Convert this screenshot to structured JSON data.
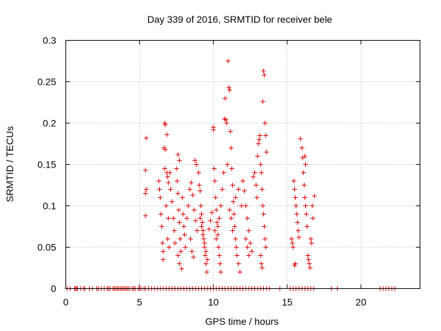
{
  "chart_data": {
    "type": "scatter",
    "title": "Day 339 of 2016, SRMTID for receiver bele",
    "xlabel": "GPS time / hours",
    "ylabel": "SRMTID / TECUs",
    "xlim": [
      0,
      24
    ],
    "ylim": [
      0,
      0.3
    ],
    "xticks": [
      0,
      5,
      10,
      15,
      20
    ],
    "yticks": [
      0,
      0.05,
      0.1,
      0.15,
      0.2,
      0.25,
      0.3
    ],
    "xtick_labels": [
      "0",
      "5",
      "10",
      "15",
      "20"
    ],
    "ytick_labels": [
      "0",
      "0.05",
      "0.1",
      "0.15",
      "0.2",
      "0.25",
      "0.3"
    ],
    "grid": true,
    "marker": "+",
    "color": "#e00000",
    "series": [
      {
        "name": "SRMTID",
        "points": [
          [
            5.45,
            0.182
          ],
          [
            5.4,
            0.143
          ],
          [
            5.45,
            0.12
          ],
          [
            5.4,
            0.115
          ],
          [
            5.4,
            0.088
          ],
          [
            6.3,
            0.13
          ],
          [
            6.35,
            0.12
          ],
          [
            6.4,
            0.11
          ],
          [
            6.45,
            0.09
          ],
          [
            6.5,
            0.075
          ],
          [
            6.55,
            0.055
          ],
          [
            6.6,
            0.045
          ],
          [
            6.7,
            0.2
          ],
          [
            6.75,
            0.198
          ],
          [
            6.65,
            0.17
          ],
          [
            6.75,
            0.168
          ],
          [
            6.85,
            0.186
          ],
          [
            6.7,
            0.145
          ],
          [
            6.85,
            0.14
          ],
          [
            6.9,
            0.135
          ],
          [
            6.95,
            0.128
          ],
          [
            6.8,
            0.1
          ],
          [
            6.95,
            0.085
          ],
          [
            6.9,
            0.06
          ],
          [
            7.0,
            0.05
          ],
          [
            6.6,
            0.035
          ],
          [
            7.05,
            0.14
          ],
          [
            7.1,
            0.12
          ],
          [
            7.2,
            0.105
          ],
          [
            7.3,
            0.085
          ],
          [
            7.35,
            0.07
          ],
          [
            7.4,
            0.055
          ],
          [
            7.55,
            0.13
          ],
          [
            7.6,
            0.115
          ],
          [
            7.65,
            0.095
          ],
          [
            7.7,
            0.08
          ],
          [
            7.75,
            0.06
          ],
          [
            7.8,
            0.045
          ],
          [
            7.6,
            0.04
          ],
          [
            7.7,
            0.03
          ],
          [
            7.85,
            0.024
          ],
          [
            7.6,
            0.162
          ],
          [
            7.7,
            0.155
          ],
          [
            7.5,
            0.145
          ],
          [
            7.9,
            0.11
          ],
          [
            7.95,
            0.09
          ],
          [
            8.0,
            0.075
          ],
          [
            8.05,
            0.065
          ],
          [
            8.1,
            0.05
          ],
          [
            8.2,
            0.085
          ],
          [
            8.3,
            0.1
          ],
          [
            8.4,
            0.12
          ],
          [
            8.5,
            0.128
          ],
          [
            8.6,
            0.113
          ],
          [
            8.7,
            0.095
          ],
          [
            8.8,
            0.082
          ],
          [
            8.9,
            0.07
          ],
          [
            8.45,
            0.06
          ],
          [
            8.55,
            0.045
          ],
          [
            8.65,
            0.038
          ],
          [
            8.75,
            0.155
          ],
          [
            8.85,
            0.15
          ],
          [
            9.0,
            0.14
          ],
          [
            9.05,
            0.125
          ],
          [
            9.1,
            0.118
          ],
          [
            9.15,
            0.1
          ],
          [
            9.2,
            0.09
          ],
          [
            9.25,
            0.08
          ],
          [
            9.3,
            0.07
          ],
          [
            9.35,
            0.06
          ],
          [
            9.4,
            0.05
          ],
          [
            9.45,
            0.04
          ],
          [
            9.5,
            0.03
          ],
          [
            9.55,
            0.02
          ],
          [
            9.1,
            0.085
          ],
          [
            9.2,
            0.075
          ],
          [
            9.3,
            0.065
          ],
          [
            9.4,
            0.055
          ],
          [
            9.5,
            0.045
          ],
          [
            9.6,
            0.035
          ],
          [
            9.7,
            0.072
          ],
          [
            9.8,
            0.082
          ],
          [
            9.9,
            0.092
          ],
          [
            10.0,
            0.195
          ],
          [
            10.0,
            0.192
          ],
          [
            10.05,
            0.145
          ],
          [
            10.1,
            0.13
          ],
          [
            10.15,
            0.11
          ],
          [
            10.2,
            0.095
          ],
          [
            10.25,
            0.08
          ],
          [
            10.3,
            0.065
          ],
          [
            10.35,
            0.05
          ],
          [
            10.4,
            0.04
          ],
          [
            10.45,
            0.03
          ],
          [
            10.5,
            0.02
          ],
          [
            10.1,
            0.07
          ],
          [
            10.2,
            0.06
          ],
          [
            10.3,
            0.075
          ],
          [
            10.4,
            0.085
          ],
          [
            10.5,
            0.1
          ],
          [
            10.6,
            0.12
          ],
          [
            10.7,
            0.14
          ],
          [
            10.75,
            0.205
          ],
          [
            10.85,
            0.204
          ],
          [
            10.9,
            0.2
          ],
          [
            10.8,
            0.23
          ],
          [
            10.95,
            0.15
          ],
          [
            11.0,
            0.275
          ],
          [
            11.05,
            0.243
          ],
          [
            11.1,
            0.24
          ],
          [
            11.15,
            0.19
          ],
          [
            11.2,
            0.17
          ],
          [
            11.25,
            0.145
          ],
          [
            11.3,
            0.125
          ],
          [
            11.35,
            0.105
          ],
          [
            11.4,
            0.09
          ],
          [
            11.45,
            0.075
          ],
          [
            11.5,
            0.06
          ],
          [
            11.55,
            0.05
          ],
          [
            11.6,
            0.04
          ],
          [
            11.7,
            0.03
          ],
          [
            11.8,
            0.02
          ],
          [
            11.1,
            0.095
          ],
          [
            11.2,
            0.085
          ],
          [
            11.3,
            0.07
          ],
          [
            11.5,
            0.11
          ],
          [
            11.7,
            0.12
          ],
          [
            11.9,
            0.1
          ],
          [
            12.0,
            0.13
          ],
          [
            12.1,
            0.118
          ],
          [
            12.2,
            0.1
          ],
          [
            12.3,
            0.085
          ],
          [
            12.4,
            0.07
          ],
          [
            12.5,
            0.055
          ],
          [
            12.6,
            0.045
          ],
          [
            12.2,
            0.06
          ],
          [
            12.3,
            0.05
          ],
          [
            12.4,
            0.04
          ],
          [
            12.7,
            0.135
          ],
          [
            12.8,
            0.14
          ],
          [
            12.9,
            0.125
          ],
          [
            12.95,
            0.11
          ],
          [
            13.0,
            0.16
          ],
          [
            13.05,
            0.175
          ],
          [
            13.1,
            0.18
          ],
          [
            13.15,
            0.185
          ],
          [
            13.2,
            0.15
          ],
          [
            13.25,
            0.14
          ],
          [
            13.3,
            0.12
          ],
          [
            13.35,
            0.1
          ],
          [
            13.4,
            0.09
          ],
          [
            13.45,
            0.075
          ],
          [
            13.5,
            0.06
          ],
          [
            13.55,
            0.05
          ],
          [
            13.2,
            0.04
          ],
          [
            13.25,
            0.03
          ],
          [
            13.3,
            0.025
          ],
          [
            13.4,
            0.263
          ],
          [
            13.45,
            0.258
          ],
          [
            13.35,
            0.226
          ],
          [
            13.5,
            0.2
          ],
          [
            13.55,
            0.185
          ],
          [
            13.6,
            0.165
          ],
          [
            15.3,
            0.06
          ],
          [
            15.35,
            0.055
          ],
          [
            15.4,
            0.05
          ],
          [
            15.45,
            0.13
          ],
          [
            15.5,
            0.12
          ],
          [
            15.55,
            0.11
          ],
          [
            15.6,
            0.1
          ],
          [
            15.65,
            0.09
          ],
          [
            15.7,
            0.08
          ],
          [
            15.75,
            0.07
          ],
          [
            15.8,
            0.062
          ],
          [
            15.5,
            0.028
          ],
          [
            15.55,
            0.03
          ],
          [
            15.9,
            0.181
          ],
          [
            16.0,
            0.17
          ],
          [
            16.05,
            0.158
          ],
          [
            16.1,
            0.14
          ],
          [
            16.15,
            0.125
          ],
          [
            16.2,
            0.11
          ],
          [
            16.25,
            0.1
          ],
          [
            16.3,
            0.09
          ],
          [
            16.35,
            0.075
          ],
          [
            16.2,
            0.16
          ],
          [
            16.25,
            0.15
          ],
          [
            16.4,
            0.04
          ],
          [
            16.45,
            0.035
          ],
          [
            16.5,
            0.03
          ],
          [
            16.55,
            0.025
          ],
          [
            16.6,
            0.06
          ],
          [
            16.65,
            0.055
          ],
          [
            16.7,
            0.1
          ],
          [
            16.75,
            0.085
          ],
          [
            16.85,
            0.112
          ]
        ],
        "zero_points_x": [
          0.1,
          0.3,
          0.6,
          0.65,
          0.75,
          0.8,
          1.0,
          1.2,
          1.3,
          1.6,
          1.8,
          2.1,
          2.2,
          2.4,
          2.6,
          2.8,
          2.9,
          3.0,
          3.2,
          3.3,
          3.4,
          3.5,
          3.6,
          3.7,
          3.8,
          3.9,
          4.0,
          4.1,
          4.2,
          4.3,
          4.5,
          4.6,
          4.7,
          4.9,
          5.0,
          5.1,
          5.3,
          5.4,
          5.6,
          5.8,
          6.0,
          6.2,
          6.4,
          6.6,
          6.8,
          7.0,
          7.2,
          7.4,
          7.6,
          7.8,
          8.0,
          8.2,
          8.4,
          8.6,
          8.8,
          9.0,
          9.2,
          9.4,
          9.6,
          9.8,
          10.0,
          10.2,
          10.4,
          10.6,
          10.8,
          11.0,
          11.2,
          11.4,
          11.6,
          11.8,
          12.0,
          12.2,
          12.4,
          12.6,
          12.8,
          13.0,
          13.2,
          13.4,
          13.6,
          13.8,
          14.5,
          15.2,
          15.4,
          15.6,
          15.8,
          16.0,
          16.2,
          16.4,
          16.6,
          16.8,
          18.0,
          18.4,
          21.3,
          21.5,
          21.7,
          21.9,
          22.1,
          22.3
        ]
      }
    ]
  }
}
